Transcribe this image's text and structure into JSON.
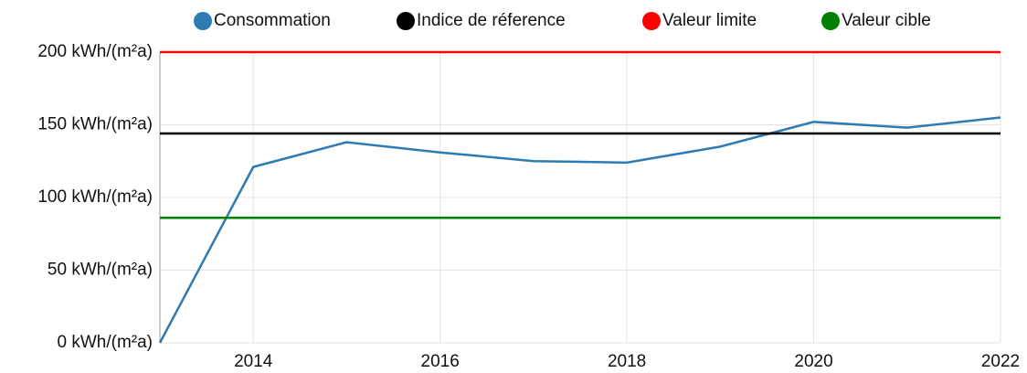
{
  "chart_data": {
    "type": "line",
    "x": [
      2013,
      2014,
      2015,
      2016,
      2017,
      2018,
      2019,
      2020,
      2021,
      2022
    ],
    "series": [
      {
        "name": "Consommation",
        "color": "#2e7bb4",
        "values": [
          0,
          121,
          138,
          131,
          125,
          124,
          135,
          152,
          148,
          155
        ]
      },
      {
        "name": "Indice de réference",
        "color": "#000000",
        "value": 144
      },
      {
        "name": "Valeur limite",
        "color": "#ff0000",
        "value": 200
      },
      {
        "name": "Valeur cible",
        "color": "#008000",
        "value": 86
      }
    ],
    "xlim": [
      2013,
      2022
    ],
    "xticks": [
      2014,
      2016,
      2018,
      2020,
      2022
    ],
    "ylim": [
      0,
      200
    ],
    "yticks": [
      {
        "value": 0,
        "label": "0 kWh/(m²a)"
      },
      {
        "value": 50,
        "label": "50 kWh/(m²a)"
      },
      {
        "value": 100,
        "label": "100 kWh/(m²a)"
      },
      {
        "value": 150,
        "label": "150 kWh/(m²a)"
      },
      {
        "value": 200,
        "label": "200 kWh/(m²a)"
      }
    ],
    "grid": true
  }
}
